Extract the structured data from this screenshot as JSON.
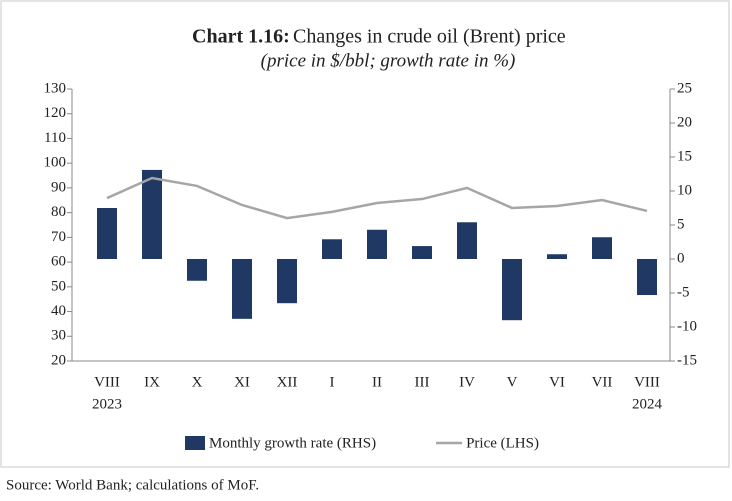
{
  "chart_data": {
    "type": "bar_line",
    "title_label": "Chart 1.16:",
    "title": "Changes in crude oil (Brent) price",
    "subtitle": "(price in $/bbl; growth rate in %)",
    "source": "Source: World Bank; calculations of MoF.",
    "categories": [
      [
        "VIII",
        "2023"
      ],
      [
        "IX"
      ],
      [
        "X"
      ],
      [
        "XI"
      ],
      [
        "XII"
      ],
      [
        "I"
      ],
      [
        "II"
      ],
      [
        "III"
      ],
      [
        "IV"
      ],
      [
        "V"
      ],
      [
        "VI"
      ],
      [
        "VII"
      ],
      [
        "VIII",
        "2024"
      ]
    ],
    "series": [
      {
        "name": "Monthly growth rate (RHS)",
        "color": "#1f3864",
        "type": "bar",
        "axis": "y2",
        "values": [
          7.5,
          13.1,
          -3.2,
          -8.8,
          -6.5,
          2.9,
          4.3,
          1.9,
          5.4,
          -9.0,
          0.7,
          3.2,
          -5.3
        ]
      },
      {
        "name": "Price (LHS)",
        "color": "#a6a6a6",
        "type": "line",
        "values": [
          85.9,
          94.0,
          90.8,
          83.1,
          77.8,
          80.3,
          83.9,
          85.5,
          90.0,
          81.9,
          82.7,
          85.1,
          80.7
        ]
      }
    ],
    "ylim": [
      20,
      130
    ],
    "yticks": [
      20,
      30,
      40,
      50,
      60,
      70,
      80,
      90,
      100,
      110,
      120,
      130
    ],
    "y2lim": [
      -15,
      25
    ],
    "y2ticks": [
      -15,
      -10,
      -5,
      0,
      5,
      10,
      15,
      20,
      25
    ],
    "legend": "bottom"
  }
}
